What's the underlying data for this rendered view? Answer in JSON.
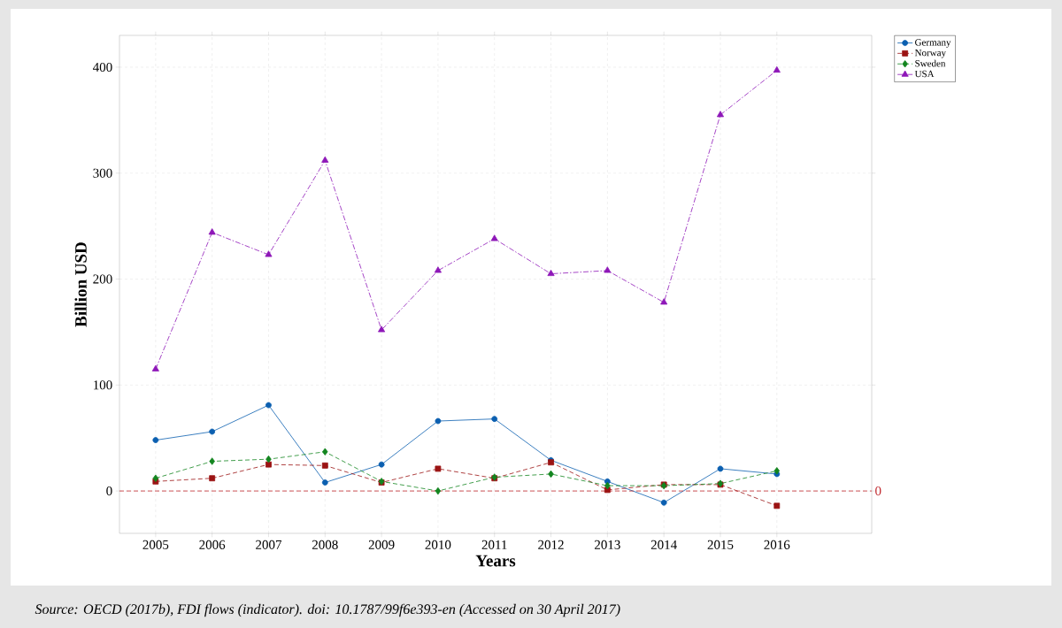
{
  "chart_data": {
    "type": "line",
    "xlabel": "Years",
    "ylabel": "Billion USD",
    "categories": [
      "2005",
      "2006",
      "2007",
      "2008",
      "2009",
      "2010",
      "2011",
      "2012",
      "2013",
      "2014",
      "2015",
      "2016"
    ],
    "ylim": [
      -40,
      430
    ],
    "yticks": [
      0,
      100,
      200,
      300,
      400
    ],
    "grid": true,
    "legend": "top right",
    "series": [
      {
        "name": "Germany",
        "color": "#0b5fb0",
        "marker": "circle",
        "line_style": "solid",
        "values": [
          48,
          56,
          81,
          8,
          25,
          66,
          68,
          29,
          9,
          -11,
          21,
          16
        ]
      },
      {
        "name": "Norway",
        "color": "#9b1313",
        "marker": "square",
        "line_style": "dashed",
        "values": [
          9,
          12,
          25,
          24,
          8,
          21,
          12,
          27,
          1,
          6,
          6,
          -14
        ]
      },
      {
        "name": "Sweden",
        "color": "#13851f",
        "marker": "diamond",
        "line_style": "dashed",
        "values": [
          12,
          28,
          30,
          37,
          9,
          0,
          13,
          16,
          5,
          5,
          7,
          19
        ]
      },
      {
        "name": "USA",
        "color": "#8e17b8",
        "marker": "triangle",
        "line_style": "dashdot",
        "values": [
          115,
          244,
          223,
          312,
          152,
          208,
          238,
          205,
          208,
          178,
          355,
          397
        ]
      }
    ],
    "ref_lines": [
      {
        "axis": "y",
        "value": 0,
        "label": "0",
        "color": "#c0282d",
        "line_style": "dashed"
      }
    ],
    "annotations": [
      "*Source: OECD (2017b), FDI flows (indicator). doi: 10.1787/99f6e393-en (Accessed on 30 April 2017)*"
    ]
  }
}
